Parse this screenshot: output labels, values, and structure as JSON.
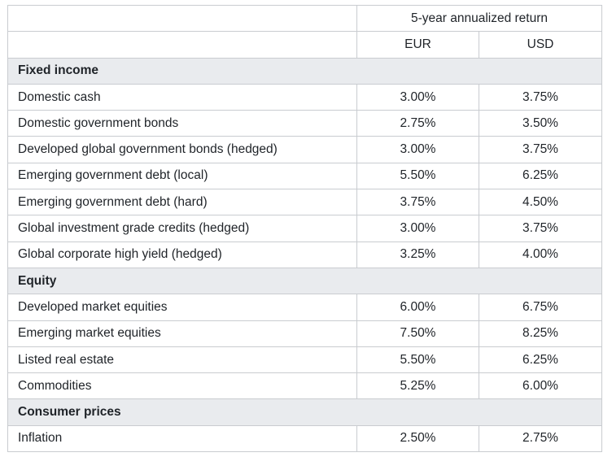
{
  "table": {
    "header_group": "5-year annualized return",
    "columns": [
      "EUR",
      "USD"
    ],
    "sections": [
      {
        "title": "Fixed income",
        "rows": [
          {
            "label": "Domestic cash",
            "eur": "3.00%",
            "usd": "3.75%"
          },
          {
            "label": "Domestic government bonds",
            "eur": "2.75%",
            "usd": "3.50%"
          },
          {
            "label": "Developed global government bonds (hedged)",
            "eur": "3.00%",
            "usd": "3.75%"
          },
          {
            "label": "Emerging government debt (local)",
            "eur": "5.50%",
            "usd": "6.25%"
          },
          {
            "label": "Emerging government debt (hard)",
            "eur": "3.75%",
            "usd": "4.50%"
          },
          {
            "label": "Global investment grade credits (hedged)",
            "eur": "3.00%",
            "usd": "3.75%"
          },
          {
            "label": "Global corporate high yield (hedged)",
            "eur": "3.25%",
            "usd": "4.00%"
          }
        ]
      },
      {
        "title": "Equity",
        "rows": [
          {
            "label": "Developed market equities",
            "eur": "6.00%",
            "usd": "6.75%"
          },
          {
            "label": "Emerging market equities",
            "eur": "7.50%",
            "usd": "8.25%"
          },
          {
            "label": "Listed real estate",
            "eur": "5.50%",
            "usd": "6.25%"
          },
          {
            "label": "Commodities",
            "eur": "5.25%",
            "usd": "6.00%"
          }
        ]
      },
      {
        "title": "Consumer prices",
        "rows": [
          {
            "label": "Inflation",
            "eur": "2.50%",
            "usd": "2.75%"
          }
        ]
      }
    ]
  }
}
